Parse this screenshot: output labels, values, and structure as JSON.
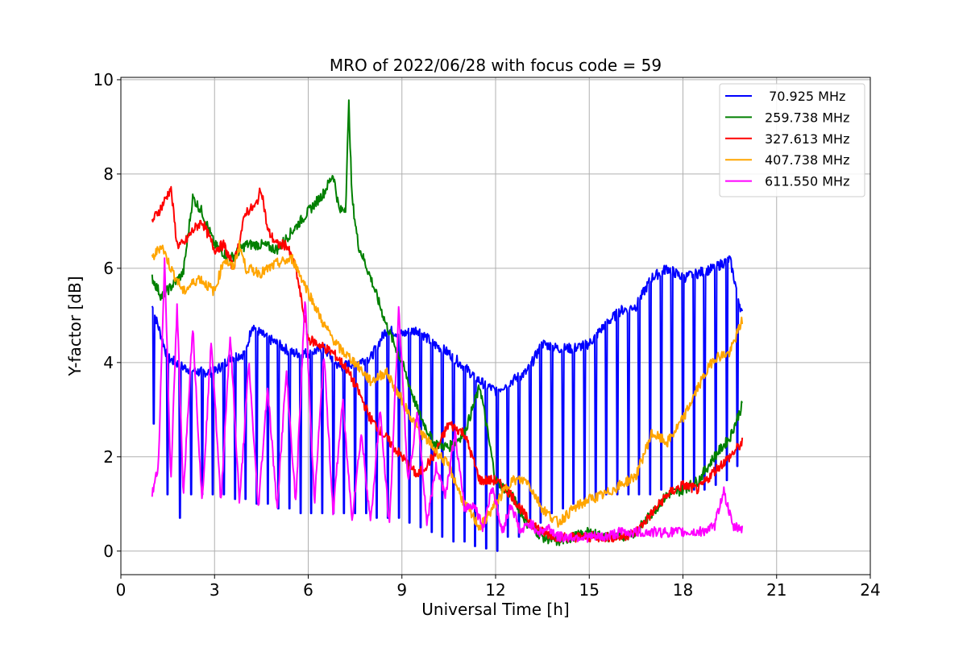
{
  "chart_data": {
    "type": "line",
    "title": "MRO of 2022/06/28 with focus code = 59",
    "xlabel": "Universal Time [h]",
    "ylabel": "Y-factor [dB]",
    "xlim": [
      0,
      24
    ],
    "ylim": [
      -0.5,
      10.05
    ],
    "xticks": [
      0,
      3,
      6,
      9,
      12,
      15,
      18,
      21,
      24
    ],
    "yticks": [
      0,
      2,
      4,
      6,
      8,
      10
    ],
    "grid": true,
    "legend_position": "top-right",
    "series": [
      {
        "name": " 70.925 MHz",
        "color": "#0000ff",
        "x": [
          1.0,
          1.5,
          2.0,
          2.5,
          3.0,
          3.5,
          4.0,
          4.2,
          4.5,
          5.0,
          5.5,
          6.0,
          6.5,
          7.0,
          7.5,
          8.0,
          8.5,
          9.0,
          9.5,
          10.0,
          10.5,
          11.0,
          11.5,
          12.0,
          12.5,
          13.0,
          13.5,
          14.0,
          14.5,
          15.0,
          15.5,
          16.0,
          16.5,
          17.0,
          17.5,
          18.0,
          18.5,
          19.0,
          19.5,
          19.9
        ],
        "values": [
          5.2,
          4.1,
          3.9,
          3.8,
          3.8,
          4.1,
          4.2,
          4.8,
          4.6,
          4.4,
          4.2,
          4.2,
          4.3,
          3.9,
          4.0,
          4.1,
          4.7,
          4.6,
          4.7,
          4.4,
          4.2,
          3.9,
          3.6,
          3.4,
          3.6,
          3.8,
          4.4,
          4.3,
          4.3,
          4.4,
          4.8,
          5.1,
          5.2,
          5.8,
          6.0,
          5.8,
          5.9,
          6.0,
          6.2,
          5.0
        ],
        "dips": [
          [
            1.05,
            2.7
          ],
          [
            1.5,
            1.2
          ],
          [
            1.9,
            0.7
          ],
          [
            2.25,
            1.2
          ],
          [
            2.6,
            1.2
          ],
          [
            2.95,
            1.2
          ],
          [
            3.3,
            1.2
          ],
          [
            3.65,
            1.1
          ],
          [
            4.0,
            1.1
          ],
          [
            4.35,
            1.0
          ],
          [
            4.7,
            1.0
          ],
          [
            5.05,
            0.9
          ],
          [
            5.4,
            0.9
          ],
          [
            5.75,
            0.8
          ],
          [
            6.1,
            0.8
          ],
          [
            6.45,
            0.8
          ],
          [
            6.8,
            0.8
          ],
          [
            7.15,
            0.8
          ],
          [
            7.5,
            0.8
          ],
          [
            7.85,
            0.8
          ],
          [
            8.2,
            0.7
          ],
          [
            8.55,
            0.7
          ],
          [
            8.9,
            0.7
          ],
          [
            9.25,
            0.6
          ],
          [
            9.6,
            0.5
          ],
          [
            9.95,
            0.4
          ],
          [
            10.3,
            0.3
          ],
          [
            10.65,
            0.2
          ],
          [
            11.0,
            0.2
          ],
          [
            11.35,
            0.1
          ],
          [
            11.7,
            0.05
          ],
          [
            12.05,
            0.0
          ],
          [
            12.4,
            0.3
          ],
          [
            12.75,
            0.3
          ],
          [
            13.1,
            0.5
          ],
          [
            13.45,
            0.6
          ],
          [
            13.8,
            0.8
          ],
          [
            14.15,
            0.9
          ],
          [
            14.5,
            1.0
          ],
          [
            14.85,
            1.1
          ],
          [
            15.2,
            1.1
          ],
          [
            15.55,
            1.2
          ],
          [
            15.9,
            1.2
          ],
          [
            16.25,
            1.2
          ],
          [
            16.6,
            1.2
          ],
          [
            16.95,
            1.2
          ],
          [
            17.3,
            1.3
          ],
          [
            17.65,
            1.3
          ],
          [
            18.0,
            1.3
          ],
          [
            18.35,
            1.3
          ],
          [
            18.7,
            1.3
          ],
          [
            19.05,
            1.4
          ],
          [
            19.4,
            1.5
          ],
          [
            19.75,
            1.8
          ]
        ]
      },
      {
        "name": "259.738 MHz",
        "color": "#008000",
        "x": [
          1.0,
          1.3,
          1.6,
          2.0,
          2.3,
          2.6,
          3.0,
          3.5,
          4.0,
          4.5,
          5.0,
          5.5,
          6.0,
          6.5,
          6.8,
          7.0,
          7.2,
          7.3,
          7.4,
          7.6,
          8.0,
          8.5,
          9.0,
          9.5,
          10.0,
          10.5,
          11.0,
          11.5,
          12.0,
          12.5,
          13.0,
          13.5,
          14.0,
          14.5,
          15.0,
          15.5,
          16.0,
          16.5,
          17.0,
          17.5,
          18.0,
          18.5,
          19.0,
          19.5,
          19.9
        ],
        "values": [
          5.8,
          5.4,
          5.6,
          5.9,
          7.5,
          7.2,
          6.5,
          6.2,
          6.5,
          6.5,
          6.4,
          6.8,
          7.2,
          7.6,
          8.0,
          7.2,
          7.3,
          9.5,
          7.5,
          6.5,
          5.8,
          4.8,
          4.0,
          3.0,
          2.3,
          2.2,
          2.5,
          3.5,
          1.5,
          1.2,
          0.6,
          0.3,
          0.2,
          0.3,
          0.4,
          0.3,
          0.3,
          0.4,
          0.8,
          1.2,
          1.3,
          1.5,
          2.0,
          2.4,
          3.1
        ]
      },
      {
        "name": "327.613 MHz",
        "color": "#ff0000",
        "x": [
          1.0,
          1.3,
          1.6,
          1.8,
          2.0,
          2.3,
          2.6,
          3.0,
          3.3,
          3.6,
          4.0,
          4.3,
          4.5,
          4.7,
          5.0,
          5.3,
          5.6,
          6.0,
          6.3,
          6.8,
          7.2,
          7.6,
          8.0,
          8.5,
          9.0,
          9.5,
          10.0,
          10.5,
          11.0,
          11.5,
          12.0,
          12.5,
          13.0,
          13.5,
          14.0,
          14.5,
          15.0,
          15.5,
          16.0,
          16.5,
          17.0,
          17.5,
          18.0,
          18.5,
          19.0,
          19.5,
          19.9
        ],
        "values": [
          7.0,
          7.3,
          7.7,
          6.5,
          6.5,
          6.8,
          7.0,
          6.4,
          6.5,
          6.0,
          7.2,
          7.3,
          7.7,
          6.8,
          6.5,
          6.5,
          6.0,
          4.5,
          4.4,
          4.2,
          3.9,
          3.4,
          2.8,
          2.4,
          2.0,
          1.6,
          2.0,
          2.7,
          2.5,
          1.5,
          1.5,
          1.2,
          0.7,
          0.4,
          0.3,
          0.3,
          0.3,
          0.3,
          0.3,
          0.4,
          0.8,
          1.2,
          1.4,
          1.3,
          1.7,
          2.0,
          2.3
        ]
      },
      {
        "name": "407.738 MHz",
        "color": "#ffa500",
        "x": [
          1.0,
          1.3,
          1.6,
          2.0,
          2.5,
          3.0,
          3.3,
          3.6,
          3.8,
          4.0,
          4.5,
          5.0,
          5.5,
          6.0,
          6.5,
          7.0,
          7.5,
          8.0,
          8.5,
          9.0,
          9.5,
          10.0,
          10.5,
          11.0,
          11.5,
          12.0,
          12.5,
          13.0,
          13.5,
          14.0,
          14.5,
          15.0,
          15.5,
          16.0,
          16.5,
          17.0,
          17.5,
          18.0,
          18.5,
          19.0,
          19.5,
          19.9
        ],
        "values": [
          6.2,
          6.5,
          6.0,
          5.5,
          5.8,
          5.5,
          6.2,
          6.0,
          6.5,
          6.0,
          5.9,
          6.1,
          6.2,
          5.5,
          4.8,
          4.3,
          4.0,
          3.6,
          3.8,
          3.2,
          2.6,
          2.2,
          1.8,
          1.0,
          0.5,
          1.0,
          1.5,
          1.5,
          0.9,
          0.6,
          0.9,
          1.1,
          1.2,
          1.4,
          1.6,
          2.5,
          2.3,
          2.8,
          3.5,
          4.1,
          4.2,
          4.9
        ]
      },
      {
        "name": "611.550 MHz",
        "color": "#ff00ff",
        "x": [
          1.0,
          1.2,
          1.4,
          1.6,
          1.8,
          2.0,
          2.3,
          2.6,
          2.9,
          3.2,
          3.5,
          3.8,
          4.1,
          4.4,
          4.7,
          5.0,
          5.3,
          5.6,
          5.9,
          6.2,
          6.5,
          6.8,
          7.1,
          7.4,
          7.7,
          8.0,
          8.3,
          8.6,
          8.9,
          9.2,
          9.5,
          9.8,
          10.1,
          10.4,
          10.7,
          11.0,
          11.3,
          11.6,
          11.9,
          12.2,
          12.5,
          12.8,
          13.1,
          13.4,
          13.7,
          14.0,
          14.5,
          15.0,
          15.5,
          16.0,
          16.5,
          17.0,
          17.5,
          18.0,
          18.5,
          19.0,
          19.3,
          19.6,
          19.9
        ],
        "values": [
          1.2,
          1.8,
          6.2,
          1.5,
          5.2,
          1.2,
          4.8,
          1.0,
          4.5,
          1.0,
          4.6,
          1.0,
          4.0,
          0.9,
          3.5,
          0.9,
          3.8,
          1.0,
          5.4,
          1.0,
          4.2,
          0.8,
          3.2,
          0.7,
          2.5,
          0.6,
          3.0,
          0.5,
          5.2,
          1.4,
          3.0,
          0.6,
          1.8,
          1.2,
          2.5,
          0.9,
          1.0,
          0.5,
          1.4,
          0.4,
          1.0,
          0.4,
          0.6,
          0.4,
          0.5,
          0.3,
          0.3,
          0.3,
          0.3,
          0.4,
          0.4,
          0.4,
          0.4,
          0.4,
          0.4,
          0.5,
          1.3,
          0.5,
          0.5
        ]
      }
    ]
  }
}
